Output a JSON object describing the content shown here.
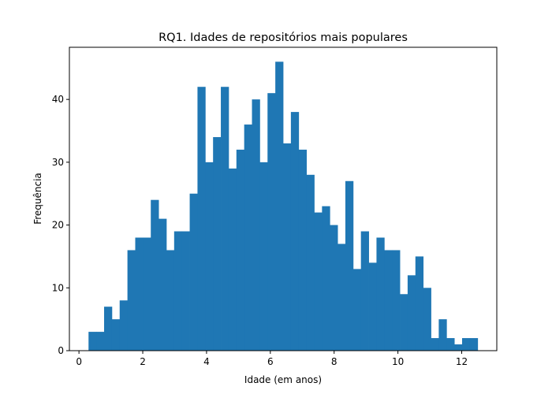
{
  "chart_data": {
    "type": "bar",
    "title": "RQ1. Idades de repositórios mais populares",
    "xlabel": "Idade (em anos)",
    "ylabel": "Frequência",
    "xlim": [
      -0.3,
      13.1
    ],
    "ylim": [
      0,
      48.3
    ],
    "xticks": [
      0,
      2,
      4,
      6,
      8,
      10,
      12
    ],
    "yticks": [
      0,
      10,
      20,
      30,
      40
    ],
    "bin_start": 0.3,
    "bin_width": 0.244,
    "values": [
      3,
      3,
      7,
      5,
      8,
      16,
      18,
      18,
      24,
      21,
      16,
      19,
      19,
      25,
      42,
      30,
      34,
      42,
      29,
      32,
      36,
      40,
      30,
      41,
      46,
      33,
      38,
      32,
      28,
      22,
      23,
      20,
      17,
      27,
      13,
      19,
      14,
      18,
      16,
      16,
      9,
      12,
      15,
      10,
      2,
      5,
      2,
      1,
      2,
      2
    ],
    "bar_color": "#1f77b4",
    "grid": false
  }
}
